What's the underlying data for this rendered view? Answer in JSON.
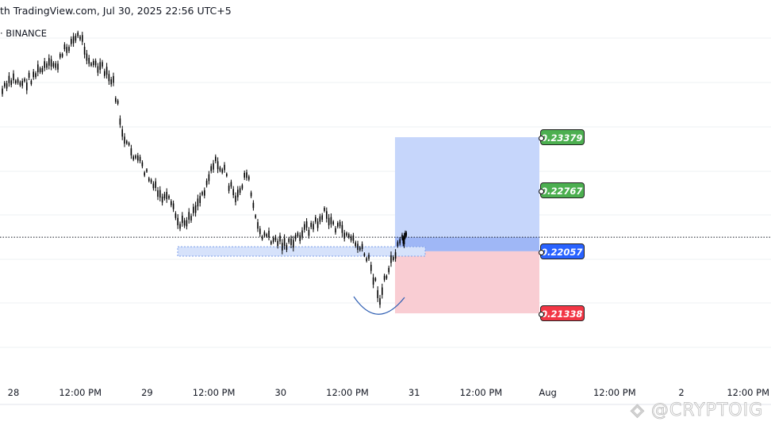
{
  "header": {
    "title": "th TradingView.com, Jul 30, 2025 22:56 UTC+5",
    "symbol": "· BINANCE"
  },
  "watermark": "◈ @CRYPTOIG",
  "chart_data": {
    "type": "candlestick",
    "title": "",
    "x_ticks": [
      "28",
      "12:00 PM",
      "29",
      "12:00 PM",
      "30",
      "12:00 PM",
      "31",
      "12:00 PM",
      "Aug",
      "12:00 PM",
      "2",
      "12:00 PM"
    ],
    "series": [
      {
        "points": [
          [
            "2025-07-27T22:00",
            0.2391
          ],
          [
            "2025-07-28T00:00",
            0.2405
          ],
          [
            "2025-07-28T02:00",
            0.24
          ],
          [
            "2025-07-28T04:00",
            0.2412
          ],
          [
            "2025-07-28T06:00",
            0.2419
          ],
          [
            "2025-07-28T08:00",
            0.2423
          ],
          [
            "2025-07-28T10:00",
            0.2446
          ],
          [
            "2025-07-28T12:00",
            0.2456
          ],
          [
            "2025-07-28T14:00",
            0.2423
          ],
          [
            "2025-07-28T16:00",
            0.2416
          ],
          [
            "2025-07-28T18:00",
            0.24
          ],
          [
            "2025-07-28T20:00",
            0.2331
          ],
          [
            "2025-07-28T22:00",
            0.2315
          ],
          [
            "2025-07-29T00:00",
            0.2295
          ],
          [
            "2025-07-29T02:00",
            0.2272
          ],
          [
            "2025-07-29T04:00",
            0.2263
          ],
          [
            "2025-07-29T06:00",
            0.2235
          ],
          [
            "2025-07-29T08:00",
            0.2249
          ],
          [
            "2025-07-29T10:00",
            0.2272
          ],
          [
            "2025-07-29T12:00",
            0.2309
          ],
          [
            "2025-07-29T14:00",
            0.2299
          ],
          [
            "2025-07-29T16:00",
            0.2263
          ],
          [
            "2025-07-29T18:00",
            0.2299
          ],
          [
            "2025-07-29T20:00",
            0.223
          ],
          [
            "2025-07-29T22:00",
            0.2221
          ],
          [
            "2025-07-30T00:00",
            0.2217
          ],
          [
            "2025-07-30T02:00",
            0.2212
          ],
          [
            "2025-07-30T04:00",
            0.223
          ],
          [
            "2025-07-30T06:00",
            0.2235
          ],
          [
            "2025-07-30T08:00",
            0.2249
          ],
          [
            "2025-07-30T10:00",
            0.2235
          ],
          [
            "2025-07-30T12:00",
            0.2226
          ],
          [
            "2025-07-30T14:00",
            0.2212
          ],
          [
            "2025-07-30T16:00",
            0.2194
          ],
          [
            "2025-07-30T18:00",
            0.2152
          ],
          [
            "2025-07-30T20:00",
            0.2194
          ],
          [
            "2025-07-30T22:00",
            0.2217
          ],
          [
            "2025-07-30T22:56",
            0.2221
          ]
        ]
      }
    ],
    "current_price_line": 0.2222,
    "position": {
      "type": "long",
      "target_2": 0.23379,
      "target_1": 0.22767,
      "entry": 0.22057,
      "stop": 0.21338
    },
    "price_labels": [
      {
        "value": "0.23379",
        "color": "#4caf50"
      },
      {
        "value": "0.22767",
        "color": "#4caf50"
      },
      {
        "value": "0.22057",
        "color": "#2962ff"
      },
      {
        "value": "0.21338",
        "color": "#f23645"
      }
    ],
    "support_zone": [
      0.22,
      0.2211
    ],
    "grid": true
  }
}
